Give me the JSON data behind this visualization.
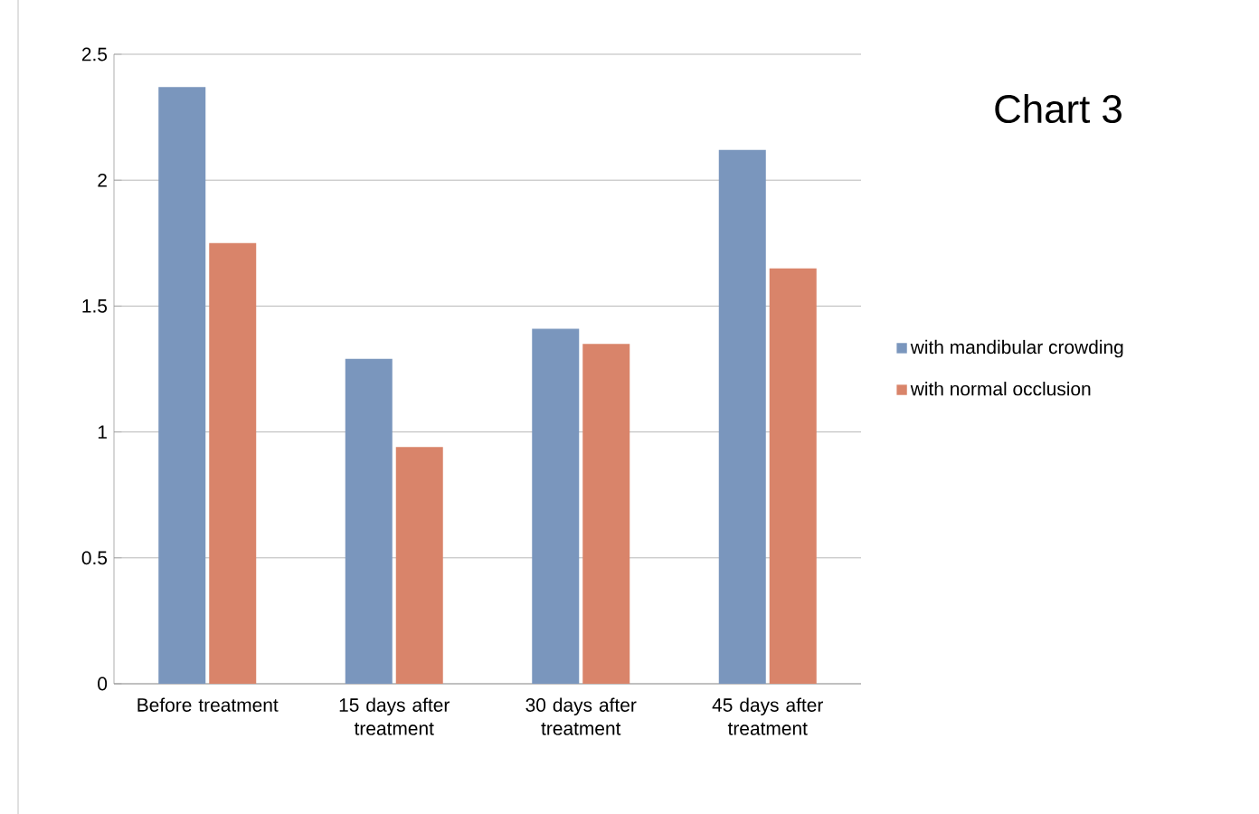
{
  "chart_data": {
    "type": "bar",
    "title": "Chart 3",
    "categories": [
      "Before treatment",
      "15 days after treatment",
      "30 days after treatment",
      "45 days after treatment"
    ],
    "series": [
      {
        "name": "with mandibular crowding",
        "color": "#7a96bd",
        "values": [
          2.37,
          1.29,
          1.41,
          2.12
        ]
      },
      {
        "name": "with normal occlusion",
        "color": "#d9846a",
        "values": [
          1.75,
          0.94,
          1.35,
          1.65
        ]
      }
    ],
    "ylim": [
      0,
      2.5
    ],
    "yticks": [
      0,
      0.5,
      1,
      1.5,
      2,
      2.5
    ],
    "grid": "y",
    "legend": "right"
  }
}
